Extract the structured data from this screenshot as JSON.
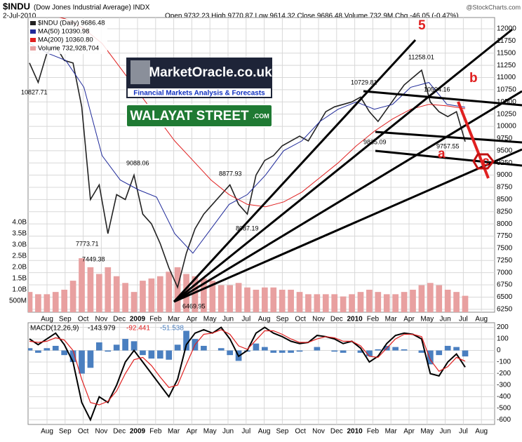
{
  "chart_data": {
    "type": "stock",
    "title": "$INDU",
    "subtitle": "(Dow Jones Industrial Average) INDX",
    "date": "2-Jul-2010",
    "quote": "Open 9732.23 High 9770.87 Low 9614.32 Close 9686.48 Volume 732.9M Chg -46.05 (-0.47%)",
    "source": "@StockCharts.com",
    "x_labels": [
      "Aug",
      "Sep",
      "Oct",
      "Nov",
      "Dec",
      "2009",
      "Feb",
      "Mar",
      "Apr",
      "May",
      "Jun",
      "Jul",
      "Aug",
      "Sep",
      "Oct",
      "Nov",
      "Dec",
      "2010",
      "Feb",
      "Mar",
      "Apr",
      "May",
      "Jun",
      "Jul",
      "Aug"
    ],
    "ylim": [
      6190,
      12230
    ],
    "yticks": [
      6250,
      6500,
      6750,
      7000,
      7250,
      7500,
      7750,
      8000,
      8250,
      8500,
      8750,
      9000,
      9250,
      9500,
      9750,
      10000,
      10250,
      10500,
      10750,
      11000,
      11250,
      11500,
      11750,
      12000
    ],
    "y2lim": [
      0,
      13.1
    ],
    "y2ticks": [
      {
        "value": 0.5,
        "label": "500M"
      },
      {
        "value": 1.0,
        "label": "1.0B"
      },
      {
        "value": 1.5,
        "label": "1.5B"
      },
      {
        "value": 2.0,
        "label": "2.0B"
      },
      {
        "value": 2.5,
        "label": "2.5B"
      },
      {
        "value": 3.0,
        "label": "3.0B"
      },
      {
        "value": 3.5,
        "label": "3.5B"
      },
      {
        "value": 4.0,
        "label": "4.0B"
      }
    ],
    "grid": true,
    "series": [
      {
        "name": "$INDU (Daily) 9686.48",
        "color": "#222222",
        "values": [
          11300,
          10900,
          11500,
          11650,
          11350,
          11300,
          10400,
          8500,
          8800,
          7800,
          8600,
          8500,
          9000,
          8200,
          8000,
          7600,
          7100,
          6700,
          7400,
          7900,
          8200,
          8400,
          8600,
          8800,
          8400,
          8200,
          9000,
          9300,
          9400,
          9600,
          9700,
          9800,
          9700,
          10000,
          10300,
          10400,
          10450,
          10500,
          10600,
          10300,
          10100,
          10350,
          10600,
          10850,
          11000,
          11150,
          10500,
          10300,
          10200,
          10300,
          9686.48
        ]
      },
      {
        "name": "MA(50) 10390.98",
        "color": "#1f2a9a",
        "values": [
          11700,
          11500,
          11350,
          10800,
          9400,
          8900,
          8700,
          8550,
          7800,
          7400,
          7900,
          8400,
          8600,
          9000,
          9500,
          9700,
          10100,
          10350,
          10500,
          10350,
          10450,
          10800,
          10900,
          10450,
          10390.98
        ]
      },
      {
        "name": "MA(200) 10360.80",
        "color": "#e02020",
        "values": [
          12400,
          12300,
          12200,
          12000,
          11700,
          11200,
          10700,
          10200,
          9700,
          9300,
          8900,
          8600,
          8400,
          8350,
          8450,
          8650,
          8950,
          9250,
          9600,
          9900,
          10150,
          10350,
          10450,
          10420,
          10360.8
        ]
      },
      {
        "name": "Volume 732,928,704",
        "color": "#e8a0a0",
        "axis": "y2",
        "values": [
          0.9,
          0.8,
          0.8,
          0.9,
          1.0,
          1.4,
          2.4,
          2.0,
          1.7,
          2.0,
          1.6,
          1.3,
          0.9,
          1.4,
          1.5,
          1.6,
          1.8,
          2.0,
          1.7,
          1.6,
          1.5,
          1.4,
          1.2,
          1.2,
          1.3,
          1.1,
          1.0,
          1.1,
          1.1,
          1.0,
          1.0,
          0.9,
          0.8,
          0.8,
          0.8,
          0.8,
          0.7,
          0.8,
          0.9,
          1.0,
          0.9,
          0.8,
          0.8,
          0.9,
          1.0,
          1.2,
          1.3,
          1.2,
          1.0,
          0.9,
          0.73
        ]
      }
    ],
    "annotations": [
      "10827.71",
      "9088.06",
      "7773.71",
      "7449.38",
      "6469.95",
      "8877.93",
      "8087.19",
      "10729.81",
      "9835.09",
      "11258.01",
      "10594.16",
      "9757.55",
      "5",
      "a",
      "b",
      "c"
    ],
    "logo_title": "MarketOracle.co.uk",
    "logo_subtitle": "Financial Markets Analysis & Forecasts",
    "sign_text": "WALAYAT STREET",
    "sign_suffix": ".COM",
    "macd": {
      "label": "MACD(12,26,9)",
      "ylim": [
        -640,
        240
      ],
      "yticks": [
        200,
        100,
        0,
        -100,
        -200,
        -300,
        -400,
        -500,
        -600
      ],
      "series": [
        {
          "name": "-143.979",
          "color": "#000000",
          "values": [
            100,
            50,
            100,
            150,
            50,
            -100,
            -450,
            -600,
            -400,
            -450,
            -300,
            -100,
            0,
            -100,
            -200,
            -300,
            -400,
            -250,
            50,
            150,
            180,
            150,
            200,
            100,
            -50,
            0,
            150,
            200,
            150,
            120,
            80,
            60,
            70,
            130,
            120,
            100,
            60,
            80,
            20,
            -100,
            -50,
            60,
            130,
            150,
            140,
            100,
            -200,
            -220,
            -100,
            -30,
            -143.979
          ]
        },
        {
          "name": "-92.441",
          "color": "#e02020",
          "values": [
            80,
            70,
            80,
            110,
            90,
            0,
            -250,
            -450,
            -470,
            -440,
            -350,
            -200,
            -80,
            -60,
            -130,
            -230,
            -320,
            -300,
            -120,
            50,
            140,
            150,
            180,
            140,
            40,
            10,
            90,
            170,
            170,
            140,
            100,
            70,
            70,
            100,
            120,
            110,
            80,
            80,
            40,
            -50,
            -60,
            20,
            100,
            140,
            140,
            120,
            -80,
            -180,
            -140,
            -60,
            -92.441
          ]
        },
        {
          "name": "-51.538",
          "color": "#4a7fc0",
          "values": [
            20,
            -20,
            20,
            40,
            -40,
            -100,
            -200,
            -150,
            70,
            -10,
            50,
            100,
            80,
            -40,
            -70,
            -70,
            -80,
            50,
            170,
            100,
            40,
            0,
            20,
            -40,
            -90,
            -10,
            60,
            30,
            -20,
            -20,
            -20,
            -10,
            0,
            30,
            0,
            -10,
            -20,
            0,
            -20,
            -50,
            10,
            40,
            30,
            10,
            0,
            -20,
            -120,
            -40,
            40,
            30,
            -51.538
          ]
        }
      ]
    }
  }
}
